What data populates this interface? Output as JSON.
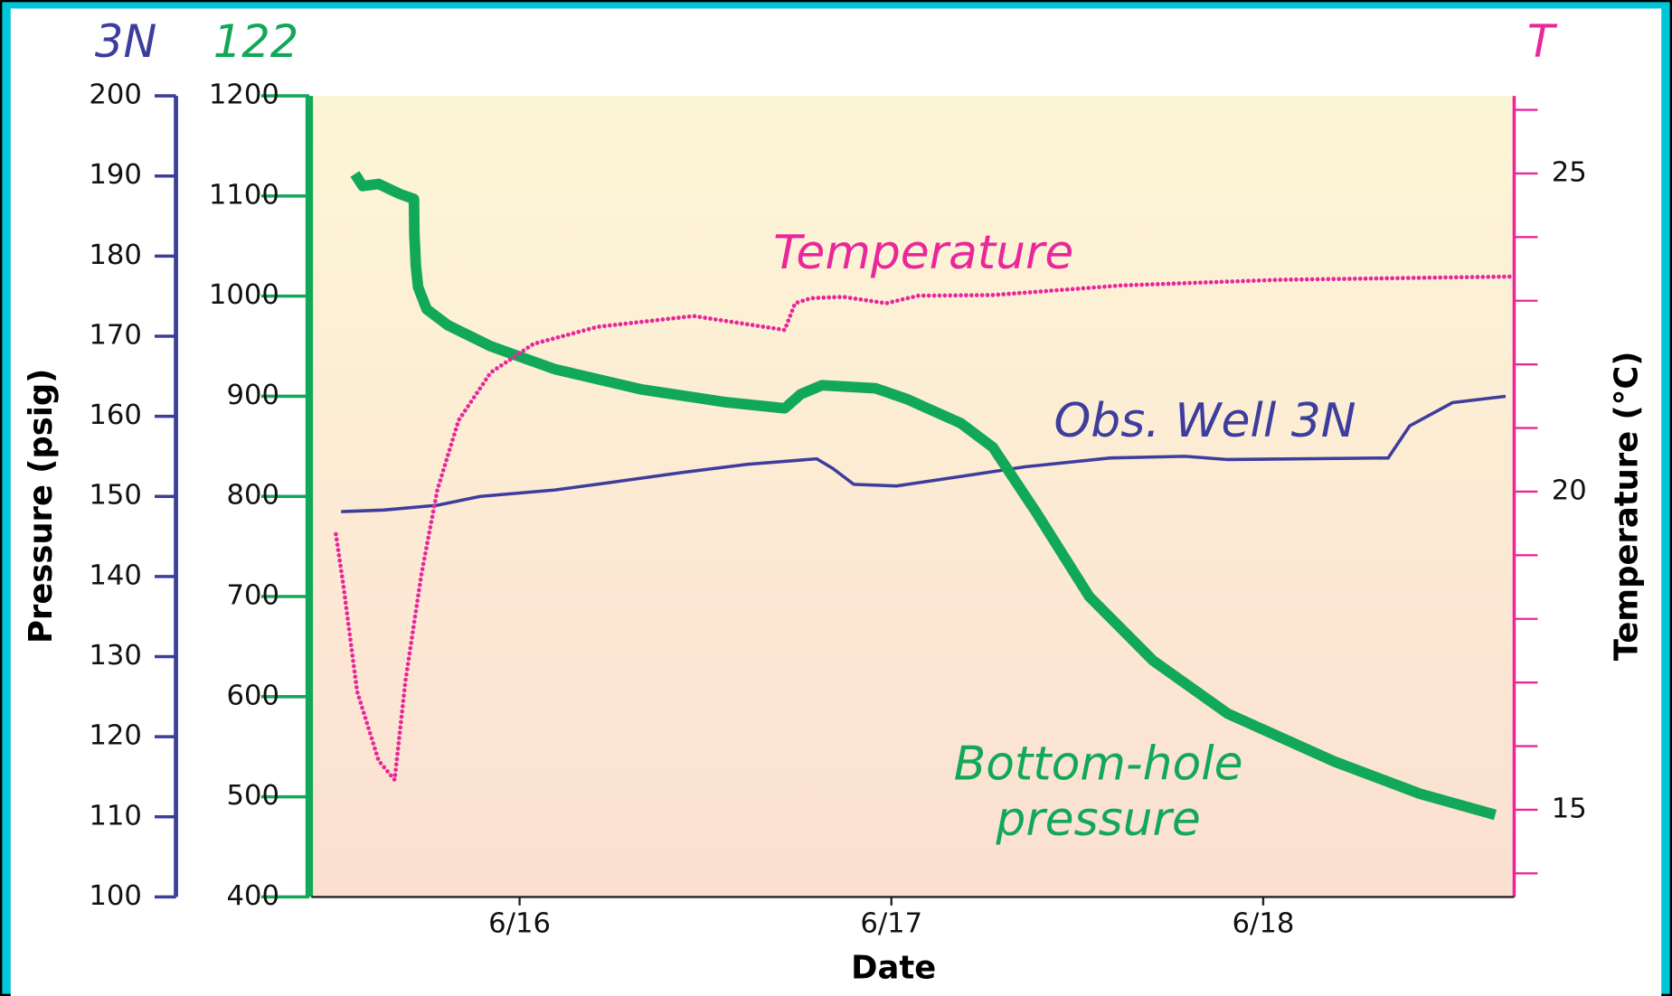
{
  "chart_data": {
    "type": "line",
    "xlabel": "Date",
    "ylabel": "Pressure (psig)",
    "y3label": "Temperature (°C)",
    "xlim": [
      15.44,
      18.675
    ],
    "xticks": [
      {
        "value": 16,
        "label": "6/16"
      },
      {
        "value": 17,
        "label": "6/17"
      },
      {
        "value": 18,
        "label": "6/18"
      }
    ],
    "ylim": [
      100,
      200
    ],
    "yticks": [
      100,
      110,
      120,
      130,
      140,
      150,
      160,
      170,
      180,
      190,
      200
    ],
    "y2lim": [
      400,
      1200
    ],
    "y2ticks": [
      400,
      500,
      600,
      700,
      800,
      900,
      1000,
      1100,
      1200
    ],
    "y3lim": [
      13.63,
      26.22
    ],
    "y3ticks": [
      15,
      20,
      25
    ],
    "y3minor_ticks": [
      14,
      16,
      17,
      18,
      19,
      21,
      22,
      23,
      24,
      26
    ],
    "series": [
      {
        "name": "3N",
        "label": [
          "Obs. Well 3N"
        ],
        "axis": "y",
        "color": "#3d3d9e",
        "style": "line",
        "x": [
          15.52,
          15.635,
          15.779,
          15.894,
          16.095,
          16.239,
          16.44,
          16.612,
          16.799,
          16.842,
          16.899,
          17.014,
          17.187,
          17.359,
          17.589,
          17.79,
          17.905,
          18.336,
          18.394,
          18.509,
          18.652
        ],
        "values": [
          148.1,
          148.3,
          148.9,
          150,
          150.8,
          151.7,
          153,
          154,
          154.7,
          153.5,
          151.5,
          151.3,
          152.5,
          153.7,
          154.8,
          155,
          154.6,
          154.8,
          158.8,
          161.7,
          162.5
        ]
      },
      {
        "name": "122",
        "label": [
          "Bottom-hole",
          "pressure"
        ],
        "axis": "y2",
        "color": "#12a85a",
        "style": "thick",
        "x": [
          15.557,
          15.578,
          15.621,
          15.678,
          15.716,
          15.717,
          15.721,
          15.727,
          15.75,
          15.807,
          15.922,
          16.095,
          16.325,
          16.555,
          16.713,
          16.756,
          16.813,
          16.957,
          17.043,
          17.187,
          17.273,
          17.388,
          17.532,
          17.704,
          17.905,
          18.193,
          18.422,
          18.624
        ],
        "values": [
          1122,
          1110,
          1112,
          1102,
          1097,
          1062,
          1030,
          1009,
          987,
          971,
          950,
          927,
          907,
          894,
          888,
          902,
          911,
          908,
          897,
          873,
          849,
          785,
          700,
          636,
          583,
          535,
          503,
          482
        ]
      },
      {
        "name": "T",
        "label": [
          "Temperature"
        ],
        "axis": "y3",
        "color": "#e8289a",
        "style": "dots",
        "x": [
          15.506,
          15.526,
          15.563,
          15.621,
          15.664,
          15.693,
          15.736,
          15.779,
          15.836,
          15.922,
          16.037,
          16.21,
          16.468,
          16.612,
          16.713,
          16.741,
          16.784,
          16.871,
          16.986,
          17.072,
          17.273,
          17.618,
          18.049,
          18.675
        ],
        "values": [
          19.33,
          18.53,
          16.86,
          15.77,
          15.47,
          17.02,
          18.7,
          20.03,
          21.12,
          21.87,
          22.32,
          22.59,
          22.76,
          22.63,
          22.54,
          22.96,
          23.04,
          23.06,
          22.96,
          23.08,
          23.09,
          23.24,
          23.33,
          23.38
        ]
      }
    ]
  }
}
